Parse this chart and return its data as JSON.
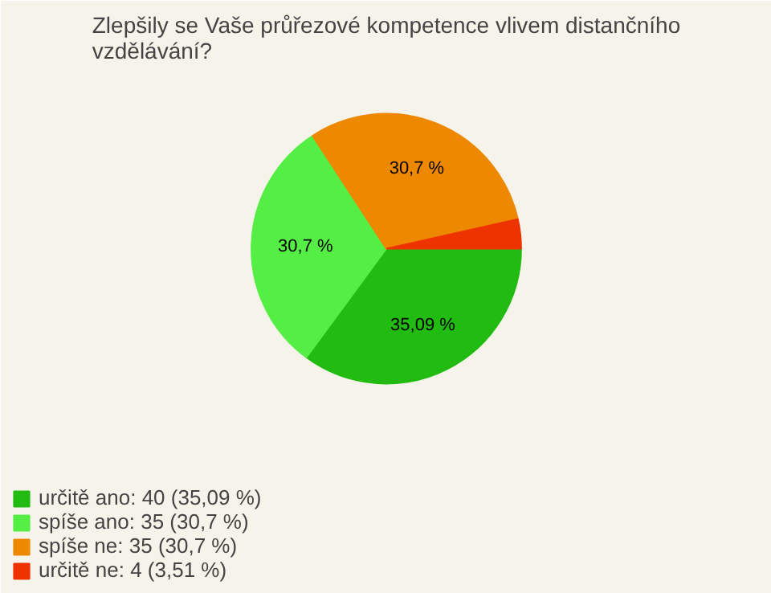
{
  "chart_data": {
    "type": "pie",
    "title": "Zlepšily se Vaše průřezové kompetence vlivem distančního\nvzdělávání?",
    "categories": [
      "určitě ano: 40 (35,09 %)",
      "spíše ano: 35 (30,7 %)",
      "spíše ne: 35 (30,7 %)",
      "určitě ne: 4 (3,51 %)"
    ],
    "values": [
      35.09,
      30.7,
      30.7,
      3.51
    ],
    "colors": [
      "#22bb11",
      "#55ee44",
      "#ee8800",
      "#ee3300"
    ],
    "value_labels": [
      "35,09 %",
      "30,7 %",
      "30,7 %",
      null
    ],
    "legend": "bottom left"
  }
}
